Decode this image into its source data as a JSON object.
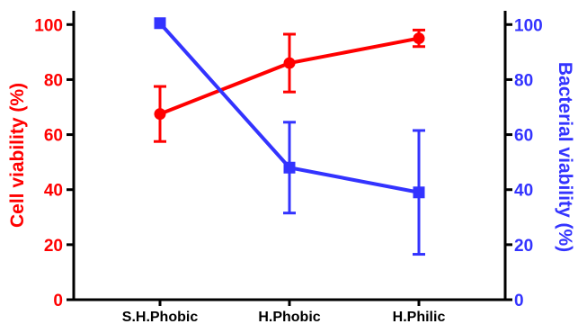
{
  "chart_data": {
    "type": "line",
    "categories": [
      "S.H.Phobic",
      "H.Phobic",
      "H.Philic"
    ],
    "y_left": {
      "label": "Cell viability (%)",
      "ticks": [
        "0",
        "20",
        "40",
        "60",
        "80",
        "100"
      ],
      "range": [
        0,
        105
      ],
      "color": "#ff0000"
    },
    "y_right": {
      "label": "Bacterial viability (%)",
      "ticks": [
        "0",
        "20",
        "40",
        "60",
        "80",
        "100"
      ],
      "range": [
        0,
        105
      ],
      "color": "#3333ff"
    },
    "series": [
      {
        "axis": "left",
        "marker": "circle",
        "color": "#ff0000",
        "values": [
          67.5,
          86,
          95
        ],
        "error": [
          10,
          10.5,
          3
        ]
      },
      {
        "axis": "right",
        "marker": "square",
        "color": "#3333ff",
        "values": [
          100.5,
          48,
          39
        ],
        "error": [
          0,
          16.5,
          22.5
        ]
      }
    ],
    "grid": false,
    "legend": "none"
  }
}
